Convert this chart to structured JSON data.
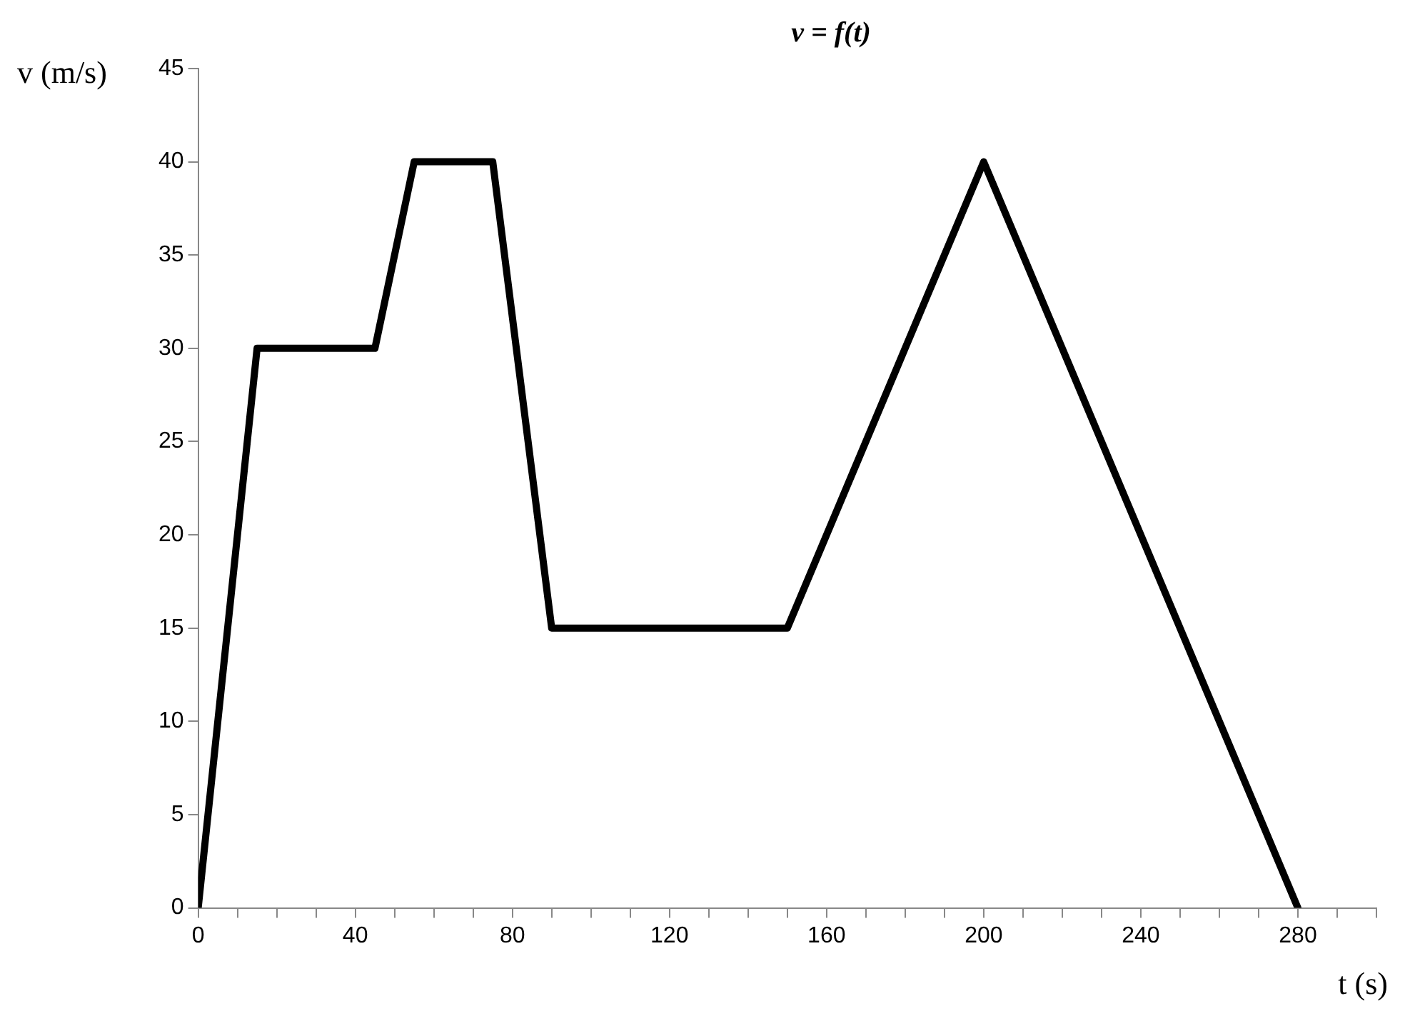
{
  "chart_data": {
    "type": "line",
    "title": "v = f(t)",
    "xlabel": "t (s)",
    "ylabel": "v (m/s)",
    "x": [
      0,
      15,
      45,
      55,
      75,
      90,
      150,
      200,
      280
    ],
    "series": [
      {
        "color": "#000000",
        "values": [
          0,
          30,
          30,
          40,
          40,
          15,
          15,
          40,
          0
        ]
      }
    ],
    "xlim": [
      0,
      300
    ],
    "xticks": [
      0,
      {
        "value": 10,
        "label": null
      },
      {
        "value": 20,
        "label": null
      },
      {
        "value": 30,
        "label": null
      },
      40,
      {
        "value": 50,
        "label": null
      },
      {
        "value": 60,
        "label": null
      },
      {
        "value": 70,
        "label": null
      },
      80,
      {
        "value": 90,
        "label": null
      },
      {
        "value": 100,
        "label": null
      },
      {
        "value": 110,
        "label": null
      },
      120,
      {
        "value": 130,
        "label": null
      },
      {
        "value": 140,
        "label": null
      },
      {
        "value": 150,
        "label": null
      },
      160,
      {
        "value": 170,
        "label": null
      },
      {
        "value": 180,
        "label": null
      },
      {
        "value": 190,
        "label": null
      },
      200,
      {
        "value": 210,
        "label": null
      },
      {
        "value": 220,
        "label": null
      },
      {
        "value": 230,
        "label": null
      },
      240,
      {
        "value": 250,
        "label": null
      },
      {
        "value": 260,
        "label": null
      },
      {
        "value": 270,
        "label": null
      },
      280,
      {
        "value": 290,
        "label": null
      },
      {
        "value": 300,
        "label": null
      }
    ],
    "ylim": [
      0,
      45
    ],
    "yticks": [
      0,
      5,
      10,
      15,
      20,
      25,
      30,
      35,
      40,
      45
    ],
    "grid": false,
    "legend": false,
    "marker": "none",
    "line_style": "solid"
  }
}
